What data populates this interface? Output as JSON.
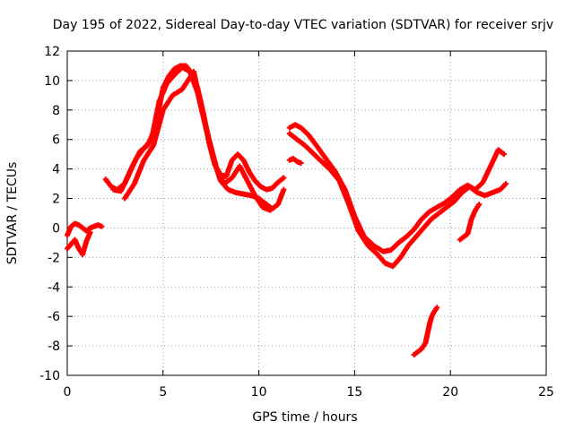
{
  "chart_data": {
    "type": "scatter",
    "title": "Day 195 of 2022, Sidereal Day-to-day VTEC variation (SDTVAR) for receiver srjv",
    "xlabel": "GPS time / hours",
    "ylabel": "SDTVAR / TECUs",
    "xlim": [
      0,
      25
    ],
    "ylim": [
      -10,
      12
    ],
    "x_ticks": [
      0,
      5,
      10,
      15,
      20,
      25
    ],
    "y_ticks": [
      -10,
      -8,
      -6,
      -4,
      -2,
      0,
      2,
      4,
      6,
      8,
      10,
      12
    ],
    "grid": true,
    "marker": "+",
    "series": [
      {
        "name": "SDTVAR",
        "color": "#ff0000",
        "segments": [
          {
            "x": [
              0.0,
              0.2,
              0.4,
              0.6,
              0.8,
              1.0,
              1.2,
              1.4,
              1.6,
              1.8
            ],
            "y": [
              -0.5,
              0.1,
              0.3,
              0.2,
              0.0,
              -0.2,
              0.0,
              0.1,
              0.2,
              0.1
            ]
          },
          {
            "x": [
              0.0,
              0.2,
              0.4,
              0.6,
              0.8,
              1.0,
              1.2
            ],
            "y": [
              -1.4,
              -1.1,
              -0.8,
              -1.4,
              -1.8,
              -0.9,
              -0.3
            ]
          },
          {
            "x": [
              2.0,
              2.3,
              2.6,
              3.0,
              3.4,
              3.8,
              4.2,
              4.6,
              5.0,
              5.3,
              5.6,
              5.9,
              6.2,
              6.5,
              6.8,
              7.1,
              7.4,
              7.7,
              8.0,
              8.3,
              8.6,
              8.9,
              9.2,
              9.5,
              9.8,
              10.1,
              10.4,
              10.7,
              11.0,
              11.3
            ],
            "y": [
              3.3,
              2.8,
              2.6,
              3.0,
              4.2,
              5.2,
              5.6,
              6.8,
              9.5,
              10.3,
              10.8,
              11.0,
              11.0,
              10.5,
              9.5,
              7.8,
              5.8,
              4.3,
              3.6,
              3.5,
              4.6,
              5.0,
              4.6,
              3.8,
              3.2,
              2.8,
              2.6,
              2.7,
              3.1,
              3.4
            ]
          },
          {
            "x": [
              2.4,
              2.8,
              3.2,
              3.6,
              4.0,
              4.4,
              4.8,
              5.2,
              5.6,
              6.0,
              6.4,
              6.8,
              7.2,
              7.6,
              8.0,
              8.4,
              8.8,
              9.2,
              9.6,
              10.0,
              10.4,
              10.7,
              11.0,
              11.3
            ],
            "y": [
              2.6,
              2.5,
              3.6,
              4.7,
              5.4,
              6.0,
              8.6,
              9.8,
              10.4,
              10.9,
              10.6,
              9.2,
              7.0,
              4.8,
              3.2,
              2.6,
              2.4,
              2.3,
              2.2,
              2.0,
              1.6,
              1.3,
              1.6,
              2.6
            ]
          },
          {
            "x": [
              3.0,
              3.5,
              4.0,
              4.5,
              5.0,
              5.5,
              6.0,
              6.3,
              6.6,
              7.0,
              7.4,
              7.8,
              8.2,
              8.6,
              9.0,
              9.4,
              9.8,
              10.2,
              10.6
            ],
            "y": [
              2.0,
              3.0,
              4.6,
              5.6,
              8.0,
              9.0,
              9.4,
              10.0,
              10.6,
              8.2,
              6.0,
              4.0,
              3.0,
              3.4,
              4.2,
              3.2,
              2.2,
              1.4,
              1.2
            ]
          },
          {
            "x": [
              11.6,
              11.9,
              12.2,
              12.6,
              13.0,
              13.5,
              14.0,
              14.5,
              15.0,
              15.5,
              16.0,
              16.5,
              16.9,
              17.3,
              17.7,
              18.1,
              18.5,
              18.9,
              19.3,
              19.7,
              20.1,
              20.5,
              20.9,
              21.3,
              21.7,
              22.1,
              22.5,
              22.8
            ],
            "y": [
              6.8,
              7.0,
              6.8,
              6.3,
              5.6,
              4.7,
              3.8,
              2.6,
              0.8,
              -0.6,
              -1.2,
              -1.6,
              -1.5,
              -1.0,
              -0.6,
              -0.1,
              0.6,
              1.1,
              1.4,
              1.7,
              2.1,
              2.6,
              2.9,
              2.6,
              3.1,
              4.2,
              5.3,
              5.0
            ]
          },
          {
            "x": [
              11.6,
              12.0,
              12.4,
              12.8,
              13.2,
              13.7,
              14.2,
              14.7,
              15.2,
              15.7,
              16.2,
              16.6,
              17.0,
              17.4,
              17.8,
              18.2,
              18.6,
              19.0,
              19.4,
              19.8,
              20.2,
              20.6,
              21.0,
              21.4,
              21.8,
              22.2,
              22.6,
              22.9
            ],
            "y": [
              6.4,
              6.0,
              5.6,
              5.1,
              4.6,
              4.0,
              3.2,
              1.6,
              -0.2,
              -1.2,
              -1.8,
              -2.4,
              -2.6,
              -2.0,
              -1.2,
              -0.6,
              0.0,
              0.6,
              1.0,
              1.4,
              1.8,
              2.4,
              2.8,
              2.4,
              2.2,
              2.4,
              2.6,
              3.0
            ]
          },
          {
            "x": [
              11.6,
              11.8,
              12.0,
              12.2
            ],
            "y": [
              4.6,
              4.7,
              4.5,
              4.4
            ]
          },
          {
            "x": [
              20.5,
              20.7,
              20.9,
              21.1,
              21.3,
              21.5
            ],
            "y": [
              -0.8,
              -0.6,
              -0.4,
              0.6,
              1.2,
              1.6
            ]
          },
          {
            "x": [
              18.1,
              18.3,
              18.5,
              18.7,
              18.8,
              18.9,
              19.0,
              19.1,
              19.2,
              19.3
            ],
            "y": [
              -8.6,
              -8.4,
              -8.2,
              -7.8,
              -7.2,
              -6.6,
              -6.1,
              -5.8,
              -5.6,
              -5.4
            ]
          }
        ]
      }
    ]
  }
}
